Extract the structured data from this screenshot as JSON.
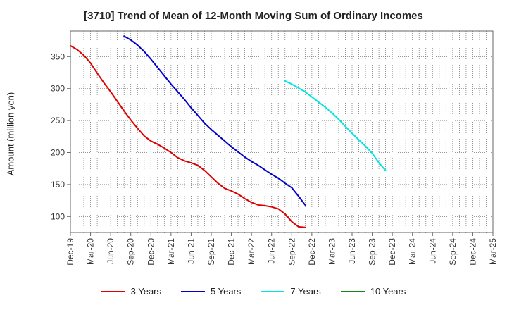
{
  "chart_data": {
    "type": "line",
    "title": "[3710]  Trend of Mean of 12-Month Moving Sum of Ordinary Incomes",
    "xlabel": "",
    "ylabel": "Amount (million yen)",
    "ylim": [
      75,
      390
    ],
    "yticks": [
      100,
      150,
      200,
      250,
      300,
      350
    ],
    "xticks": [
      "Dec-19",
      "Mar-20",
      "Jun-20",
      "Sep-20",
      "Dec-20",
      "Mar-21",
      "Jun-21",
      "Sep-21",
      "Dec-21",
      "Mar-22",
      "Jun-22",
      "Sep-22",
      "Dec-22",
      "Mar-23",
      "Jun-23",
      "Sep-23",
      "Dec-23",
      "Mar-24",
      "Jun-24",
      "Sep-24",
      "Dec-24",
      "Mar-25"
    ],
    "grid": true,
    "legend_position": "bottom",
    "series": [
      {
        "name": "3 Years",
        "color": "#dd0000",
        "start_index": 0,
        "values": [
          367,
          361,
          352,
          340,
          324,
          309,
          295,
          280,
          265,
          251,
          238,
          226,
          218,
          213,
          207,
          200,
          192,
          187,
          184,
          180,
          172,
          162,
          152,
          144,
          140,
          135,
          128,
          122,
          118,
          117,
          115,
          112,
          104,
          92,
          84,
          83
        ]
      },
      {
        "name": "5 Years",
        "color": "#0000cc",
        "start_index": 8,
        "values": [
          382,
          376,
          368,
          358,
          346,
          333,
          320,
          307,
          295,
          283,
          270,
          258,
          246,
          236,
          227,
          218,
          209,
          201,
          193,
          186,
          180,
          173,
          166,
          160,
          152,
          145,
          132,
          118
        ]
      },
      {
        "name": "7 Years",
        "color": "#00e5e5",
        "start_index": 32,
        "values": [
          312,
          307,
          301,
          295,
          287,
          279,
          271,
          262,
          252,
          241,
          230,
          220,
          210,
          199,
          184,
          172
        ]
      },
      {
        "name": "10 Years",
        "color": "#118811",
        "start_index": 0,
        "values": []
      }
    ]
  }
}
